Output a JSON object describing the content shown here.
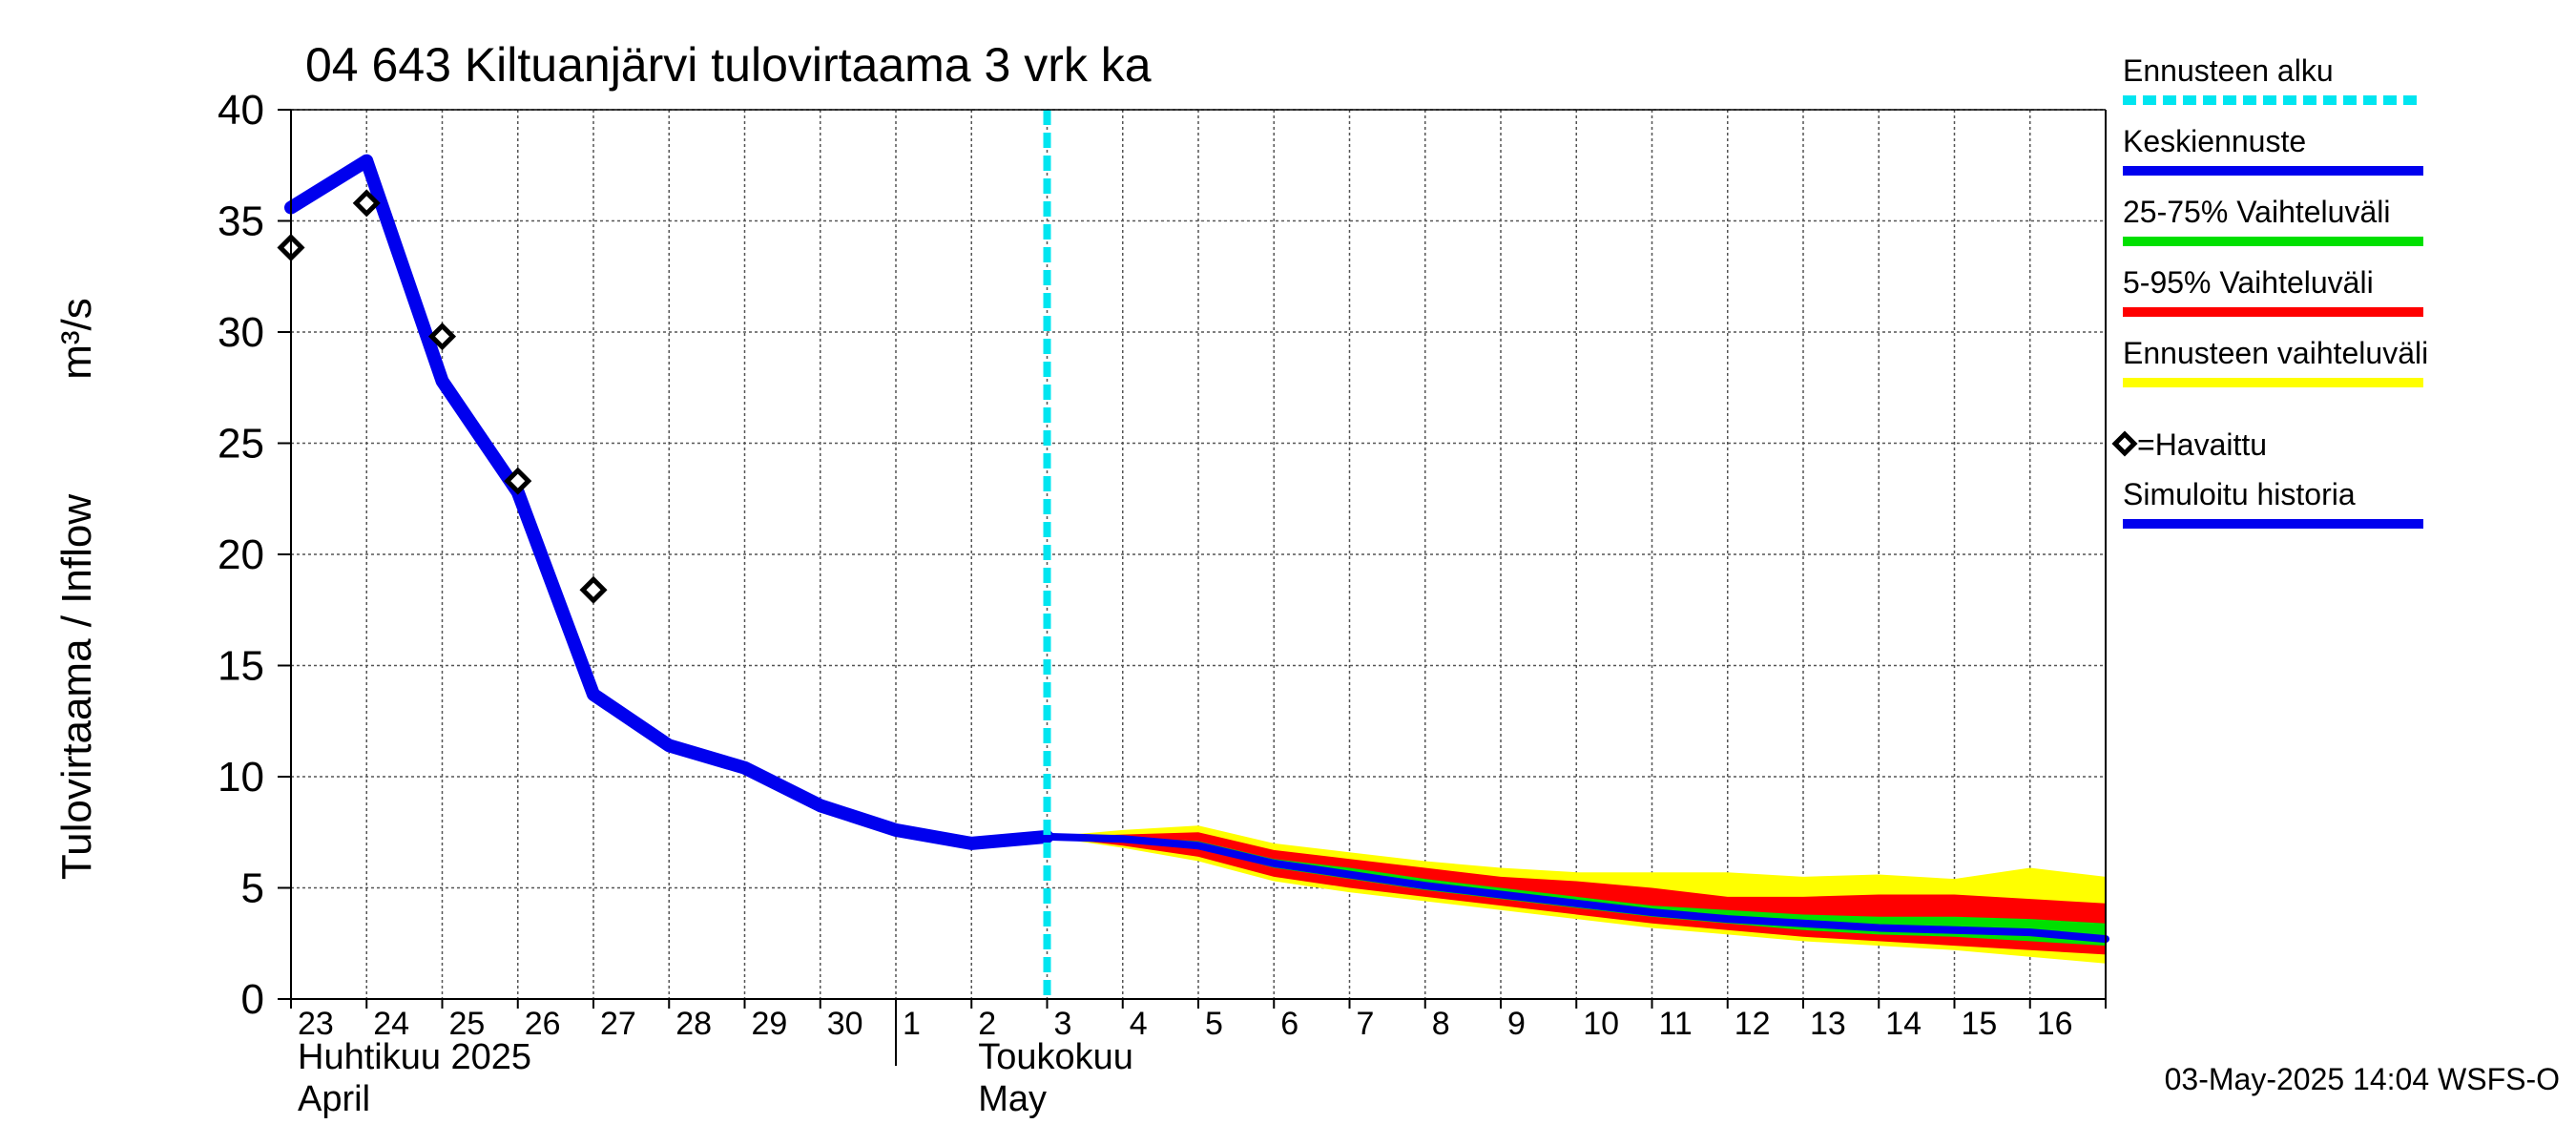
{
  "chart_data": {
    "type": "line",
    "title": "04 643 Kiltuanjärvi tulovirtaama 3 vrk ka",
    "ylabel_fi": "Tulovirtaama / Inflow",
    "ylabel_unit": "m³/s",
    "ylim": [
      0,
      40
    ],
    "yticks": [
      "0",
      "5",
      "10",
      "15",
      "20",
      "25",
      "30",
      "35",
      "40"
    ],
    "xlim": [
      0,
      24
    ],
    "day_ticks": [
      "23",
      "24",
      "25",
      "26",
      "27",
      "28",
      "29",
      "30",
      "1",
      "2",
      "3",
      "4",
      "5",
      "6",
      "7",
      "8",
      "9",
      "10",
      "11",
      "12",
      "13",
      "14",
      "15",
      "16"
    ],
    "month_labels": [
      {
        "line1": "Huhtikuu  2025",
        "line2": "April",
        "x": 0
      },
      {
        "line1": "Toukokuu",
        "line2": "May",
        "x": 9
      }
    ],
    "month_boundary_x": 8,
    "forecast_start_x": 10,
    "observed": {
      "x": [
        0,
        1,
        2,
        3,
        4
      ],
      "y": [
        33.8,
        35.8,
        29.8,
        23.3,
        18.4
      ]
    },
    "simulated_history": {
      "x": [
        0,
        1,
        2,
        3,
        4,
        5,
        6,
        7,
        8,
        9,
        10
      ],
      "y": [
        35.6,
        37.7,
        27.8,
        22.8,
        13.7,
        11.4,
        10.4,
        8.7,
        7.6,
        7.0,
        7.3
      ]
    },
    "forecast_x": [
      10,
      11,
      12,
      13,
      14,
      15,
      16,
      17,
      18,
      19,
      20,
      21,
      22,
      23,
      24
    ],
    "forecast_mean": [
      7.3,
      7.2,
      6.9,
      6.1,
      5.6,
      5.1,
      4.7,
      4.3,
      3.9,
      3.6,
      3.4,
      3.2,
      3.1,
      3.0,
      2.7
    ],
    "band_25_75": {
      "low": [
        7.3,
        7.1,
        6.8,
        5.9,
        5.4,
        4.9,
        4.5,
        4.1,
        3.7,
        3.4,
        3.1,
        2.9,
        2.8,
        2.6,
        2.4
      ],
      "high": [
        7.3,
        7.3,
        7.1,
        6.3,
        5.9,
        5.4,
        5.0,
        4.6,
        4.2,
        4.0,
        3.8,
        3.7,
        3.7,
        3.6,
        3.4
      ]
    },
    "band_5_95": {
      "low": [
        7.3,
        6.9,
        6.4,
        5.5,
        5.0,
        4.6,
        4.2,
        3.8,
        3.4,
        3.1,
        2.8,
        2.6,
        2.4,
        2.2,
        2.0
      ],
      "high": [
        7.3,
        7.4,
        7.5,
        6.7,
        6.3,
        5.9,
        5.5,
        5.3,
        5.0,
        4.6,
        4.6,
        4.7,
        4.7,
        4.5,
        4.3
      ]
    },
    "band_full": {
      "low": [
        7.3,
        6.8,
        6.2,
        5.3,
        4.8,
        4.4,
        4.0,
        3.6,
        3.2,
        2.9,
        2.6,
        2.4,
        2.2,
        1.9,
        1.6
      ],
      "high": [
        7.3,
        7.6,
        7.8,
        7.0,
        6.6,
        6.2,
        5.9,
        5.7,
        5.7,
        5.7,
        5.5,
        5.6,
        5.4,
        5.9,
        5.5
      ]
    },
    "legend": [
      {
        "label": "Ennusteen alku",
        "style": "dashed",
        "color": "#00e5f0"
      },
      {
        "label": "Keskiennuste",
        "style": "line",
        "color": "#0000ee"
      },
      {
        "label": "25-75% Vaihteluväli",
        "style": "line",
        "color": "#00e000"
      },
      {
        "label": "5-95% Vaihteluväli",
        "style": "line",
        "color": "#ff0000"
      },
      {
        "label": "Ennusteen vaihteluväli",
        "style": "line",
        "color": "#ffff00"
      },
      {
        "label": "=Havaittu",
        "style": "marker",
        "color": "#000000"
      },
      {
        "label": "Simuloitu historia",
        "style": "line",
        "color": "#0000ee"
      }
    ],
    "colors": {
      "history": "#0000ee",
      "mean": "#0000ee",
      "band_25_75": "#00e000",
      "band_5_95": "#ff0000",
      "band_full": "#ffff00",
      "forecast_start": "#00e5f0",
      "grid": "#555555"
    }
  },
  "timestamp": "03-May-2025 14:04 WSFS-O"
}
